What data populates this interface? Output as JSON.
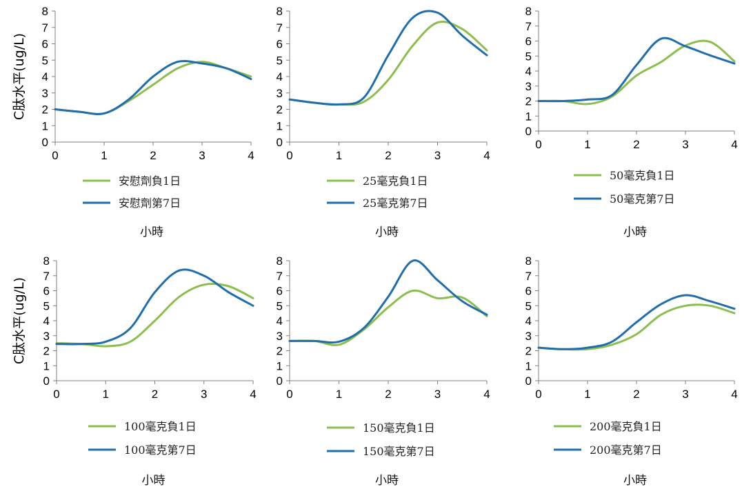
{
  "colors": {
    "day1": "#8cbd4f",
    "day7": "#1f6eab",
    "axis": "#7f7f7f"
  },
  "chart_data": [
    {
      "type": "line",
      "ylabel": "C肽水平(ug/L)",
      "xlabel": "小時",
      "xlim": [
        0,
        4
      ],
      "ylim": [
        0,
        8
      ],
      "xticks": [
        "0",
        "1",
        "2",
        "3",
        "4"
      ],
      "yticks": [
        "0",
        "1",
        "2",
        "3",
        "4",
        "5",
        "6",
        "7",
        "8"
      ],
      "legend": "bottom",
      "series": [
        {
          "name": "安慰劑負1日",
          "color": "day1",
          "x": [
            0,
            0.5,
            1,
            1.5,
            2,
            2.5,
            3,
            3.5,
            4
          ],
          "y": [
            2.0,
            1.85,
            1.75,
            2.5,
            3.5,
            4.5,
            4.9,
            4.5,
            4.0
          ]
        },
        {
          "name": "安慰劑第7日",
          "color": "day7",
          "x": [
            0,
            0.5,
            1,
            1.5,
            2,
            2.5,
            3,
            3.5,
            4
          ],
          "y": [
            2.0,
            1.85,
            1.75,
            2.6,
            4.0,
            4.9,
            4.8,
            4.5,
            3.85
          ]
        }
      ]
    },
    {
      "type": "line",
      "ylabel": "",
      "xlabel": "小時",
      "xlim": [
        0,
        4
      ],
      "ylim": [
        0,
        8
      ],
      "xticks": [
        "0",
        "1",
        "2",
        "3",
        "4"
      ],
      "yticks": [
        "0",
        "1",
        "2",
        "3",
        "4",
        "5",
        "6",
        "7",
        "8"
      ],
      "legend": "bottom",
      "series": [
        {
          "name": "25毫克負1日",
          "color": "day1",
          "x": [
            0,
            0.5,
            1,
            1.5,
            2,
            2.5,
            3,
            3.5,
            4
          ],
          "y": [
            2.6,
            2.4,
            2.3,
            2.45,
            3.8,
            5.9,
            7.3,
            6.9,
            5.6
          ]
        },
        {
          "name": "25毫克第7日",
          "color": "day7",
          "x": [
            0,
            0.5,
            1,
            1.5,
            2,
            2.5,
            3,
            3.5,
            4
          ],
          "y": [
            2.6,
            2.4,
            2.3,
            2.7,
            5.3,
            7.6,
            7.9,
            6.5,
            5.3
          ]
        }
      ]
    },
    {
      "type": "line",
      "ylabel": "",
      "xlabel": "小時",
      "xlim": [
        0,
        4
      ],
      "ylim": [
        0,
        8
      ],
      "xticks": [
        "0",
        "1",
        "2",
        "3",
        "4"
      ],
      "yticks": [
        "0",
        "1",
        "2",
        "3",
        "4",
        "5",
        "6",
        "7",
        "8"
      ],
      "legend": "bottom",
      "series": [
        {
          "name": "50毫克負1日",
          "color": "day1",
          "x": [
            0,
            0.5,
            1,
            1.5,
            2,
            2.5,
            3,
            3.5,
            4
          ],
          "y": [
            2.0,
            2.0,
            1.8,
            2.3,
            3.7,
            4.6,
            5.7,
            5.95,
            4.65
          ]
        },
        {
          "name": "50毫克第7日",
          "color": "day7",
          "x": [
            0,
            0.5,
            1,
            1.5,
            2,
            2.5,
            3,
            3.5,
            4
          ],
          "y": [
            2.0,
            2.0,
            2.1,
            2.4,
            4.4,
            6.15,
            5.65,
            5.05,
            4.5
          ]
        }
      ]
    },
    {
      "type": "line",
      "ylabel": "C肽水平(ug/L)",
      "xlabel": "小時",
      "xlim": [
        0,
        4
      ],
      "ylim": [
        0,
        8
      ],
      "xticks": [
        "0",
        "1",
        "2",
        "3",
        "4"
      ],
      "yticks": [
        "0",
        "1",
        "2",
        "3",
        "4",
        "5",
        "6",
        "7",
        "8"
      ],
      "legend": "bottom",
      "series": [
        {
          "name": "100毫克負1日",
          "color": "day1",
          "x": [
            0,
            0.5,
            1,
            1.5,
            2,
            2.5,
            3,
            3.5,
            4
          ],
          "y": [
            2.5,
            2.45,
            2.3,
            2.6,
            4.0,
            5.6,
            6.4,
            6.3,
            5.5
          ]
        },
        {
          "name": "100毫克第7日",
          "color": "day7",
          "x": [
            0,
            0.5,
            1,
            1.5,
            2,
            2.5,
            3,
            3.5,
            4
          ],
          "y": [
            2.45,
            2.45,
            2.6,
            3.5,
            5.9,
            7.35,
            7.0,
            5.9,
            5.0
          ]
        }
      ]
    },
    {
      "type": "line",
      "ylabel": "",
      "xlabel": "小時",
      "xlim": [
        0,
        4
      ],
      "ylim": [
        0,
        8
      ],
      "xticks": [
        "0",
        "1",
        "2",
        "3",
        "4"
      ],
      "yticks": [
        "0",
        "1",
        "2",
        "3",
        "4",
        "5",
        "6",
        "7",
        "8"
      ],
      "legend": "bottom",
      "series": [
        {
          "name": "150毫克負1日",
          "color": "day1",
          "x": [
            0,
            0.5,
            1,
            1.5,
            2,
            2.5,
            3,
            3.5,
            4
          ],
          "y": [
            2.65,
            2.65,
            2.4,
            3.4,
            4.9,
            6.0,
            5.5,
            5.55,
            4.3
          ]
        },
        {
          "name": "150毫克第7日",
          "color": "day7",
          "x": [
            0,
            0.5,
            1,
            1.5,
            2,
            2.5,
            3,
            3.5,
            4
          ],
          "y": [
            2.65,
            2.65,
            2.6,
            3.5,
            5.6,
            8.0,
            6.7,
            5.3,
            4.4
          ]
        }
      ]
    },
    {
      "type": "line",
      "ylabel": "",
      "xlabel": "小時",
      "xlim": [
        0,
        4
      ],
      "ylim": [
        0,
        8
      ],
      "xticks": [
        "0",
        "1",
        "2",
        "3",
        "4"
      ],
      "yticks": [
        "0",
        "1",
        "2",
        "3",
        "4",
        "5",
        "6",
        "7",
        "8"
      ],
      "legend": "bottom",
      "series": [
        {
          "name": "200毫克負1日",
          "color": "day1",
          "x": [
            0,
            0.5,
            1,
            1.5,
            2,
            2.5,
            3,
            3.5,
            4
          ],
          "y": [
            2.2,
            2.1,
            2.1,
            2.4,
            3.1,
            4.4,
            5.0,
            5.0,
            4.5
          ]
        },
        {
          "name": "200毫克第7日",
          "color": "day7",
          "x": [
            0,
            0.5,
            1,
            1.5,
            2,
            2.5,
            3,
            3.5,
            4
          ],
          "y": [
            2.2,
            2.1,
            2.2,
            2.6,
            3.9,
            5.1,
            5.7,
            5.3,
            4.8
          ]
        }
      ]
    }
  ]
}
